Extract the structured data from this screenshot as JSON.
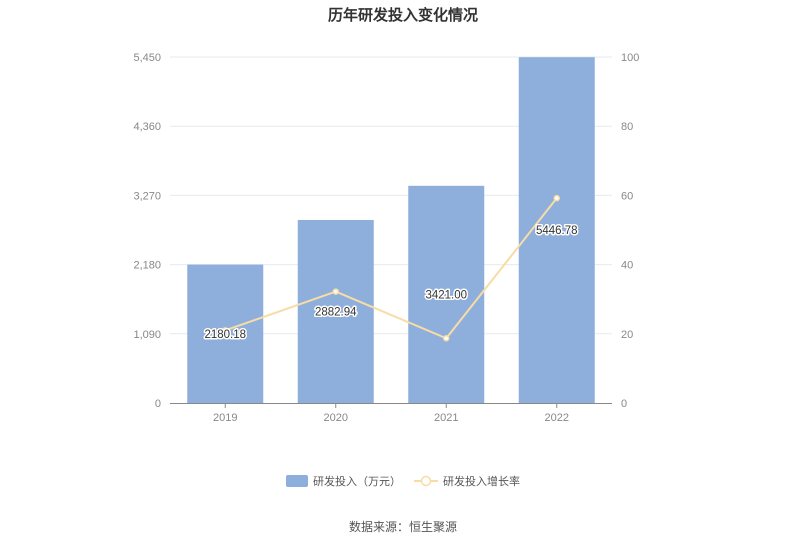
{
  "chart_data": {
    "type": "bar",
    "title": "历年研发投入变化情况",
    "categories": [
      "2019",
      "2020",
      "2021",
      "2022"
    ],
    "series": [
      {
        "name": "研发投入（万元）",
        "type": "bar",
        "axis": "left",
        "values": [
          2180.18,
          2882.94,
          3421.0,
          5446.78
        ],
        "labels": [
          "2180.18",
          "2882.94",
          "3421.00",
          "5446.78"
        ],
        "color": "#8eaedb"
      },
      {
        "name": "研发投入增长率",
        "type": "line",
        "axis": "right",
        "values": [
          21,
          32.2,
          18.7,
          59.2
        ],
        "color": "#f7dca6"
      }
    ],
    "y_left": {
      "ticks": [
        "0",
        "1,090",
        "2,180",
        "3,270",
        "4,360",
        "5,450"
      ],
      "range": [
        0,
        5450
      ]
    },
    "y_right": {
      "ticks": [
        "0",
        "20",
        "40",
        "60",
        "80",
        "100"
      ],
      "range": [
        0,
        100
      ]
    },
    "grid": true,
    "legend_position": "bottom"
  },
  "source": "数据来源：恒生聚源"
}
